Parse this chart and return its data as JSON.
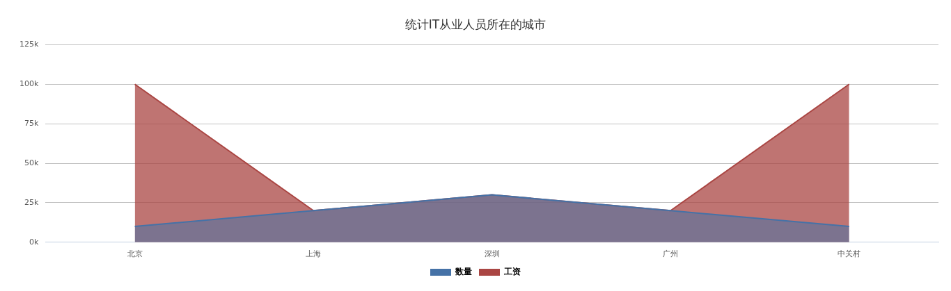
{
  "chart_data": {
    "type": "area",
    "title": "统计IT从业人员所在的城市",
    "categories": [
      "北京",
      "上海",
      "深圳",
      "广州",
      "中关村"
    ],
    "series": [
      {
        "name": "数量",
        "color": "#4572a7",
        "values": [
          10000,
          20000,
          30000,
          20000,
          10000
        ]
      },
      {
        "name": "工资",
        "color": "#aa4643",
        "values": [
          100000,
          20000,
          30000,
          20000,
          100000
        ]
      }
    ],
    "ylim": [
      0,
      125000
    ],
    "yticks": [
      {
        "value": 0,
        "label": "0k"
      },
      {
        "value": 25000,
        "label": "25k"
      },
      {
        "value": 50000,
        "label": "50k"
      },
      {
        "value": 75000,
        "label": "75k"
      },
      {
        "value": 100000,
        "label": "100k"
      },
      {
        "value": 125000,
        "label": "125k"
      }
    ],
    "grid": "y",
    "legend": "bottom",
    "marker": "none"
  }
}
